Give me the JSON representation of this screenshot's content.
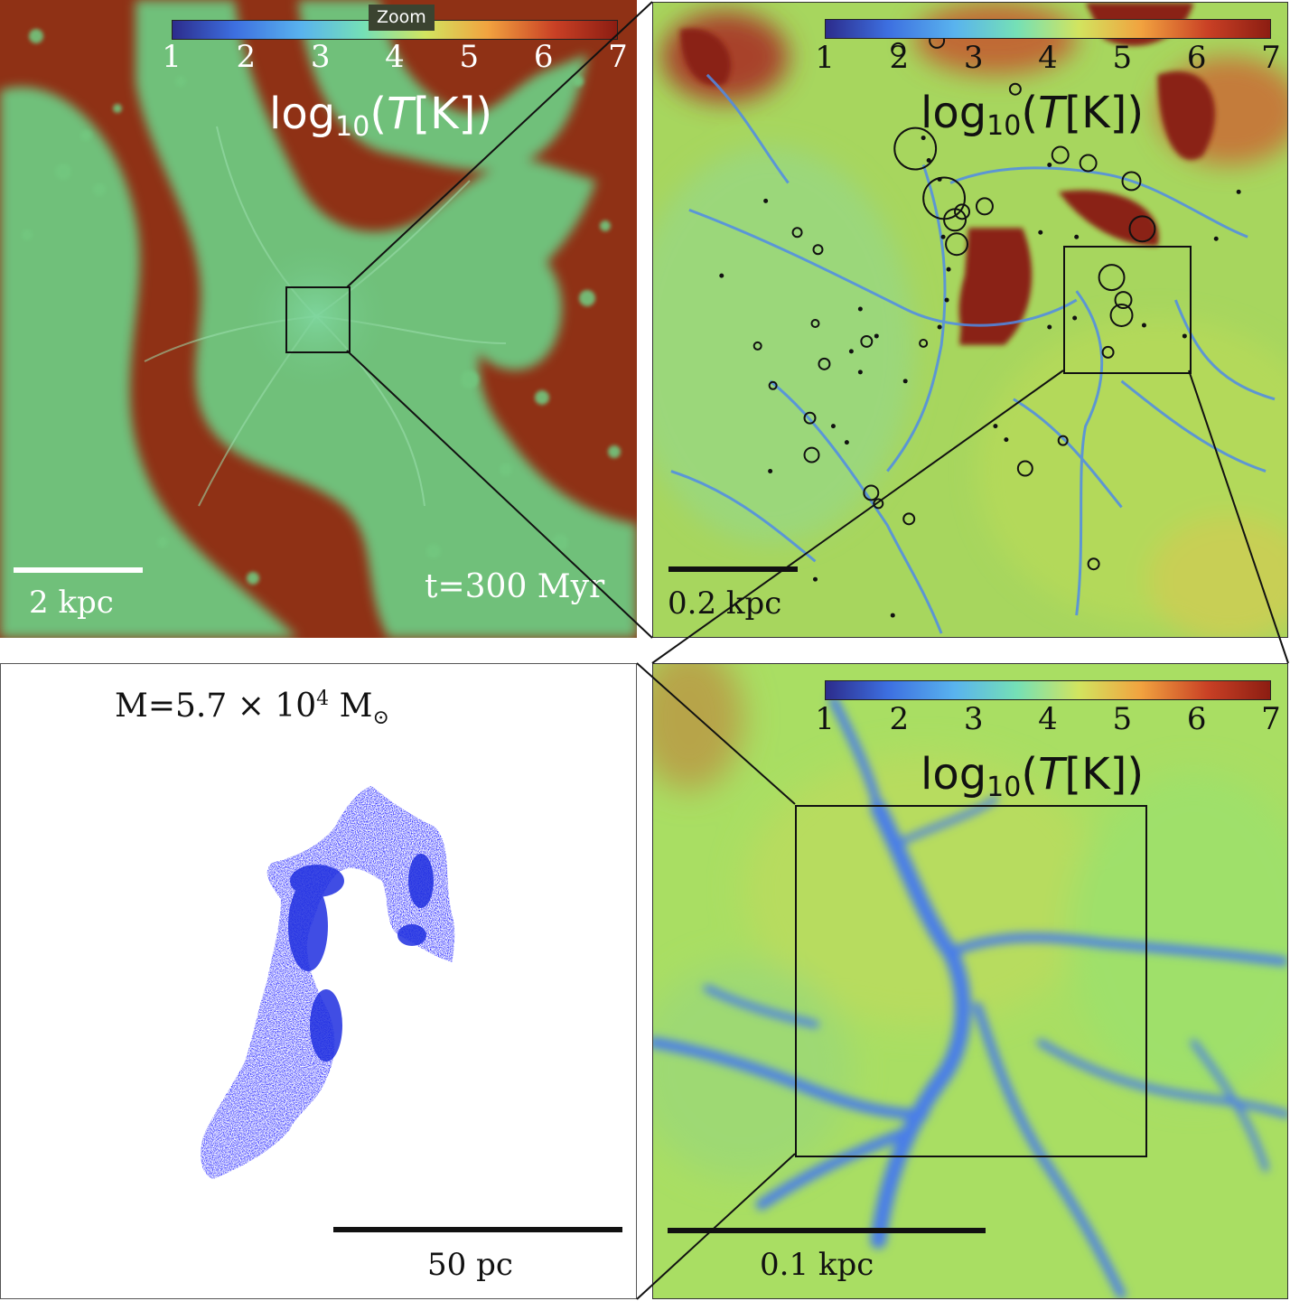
{
  "toolbar": {
    "zoom_label": "Zoom"
  },
  "colorbar": {
    "ticks": [
      "1",
      "2",
      "3",
      "4",
      "5",
      "6",
      "7"
    ],
    "label_prefix": "log",
    "label_sub": "10",
    "label_open": "(",
    "label_var": "T",
    "label_unit": "[K])",
    "colors": [
      "#2c2c8c",
      "#3d6fe0",
      "#59b3ee",
      "#75e0b6",
      "#d2e45f",
      "#f1a23f",
      "#c94025",
      "#8c1d12"
    ]
  },
  "panels": {
    "top_left": {
      "scale_label": "2 kpc",
      "time_label": "t=300 Myr"
    },
    "top_right": {
      "scale_label": "0.2 kpc"
    },
    "bottom_right": {
      "scale_label": "0.1 kpc"
    },
    "bottom_left": {
      "mass_prefix": "M=5.7 × 10",
      "mass_exp": "4",
      "mass_unit": " M",
      "mass_sub": "⊙",
      "scale_label": "50 pc"
    }
  }
}
